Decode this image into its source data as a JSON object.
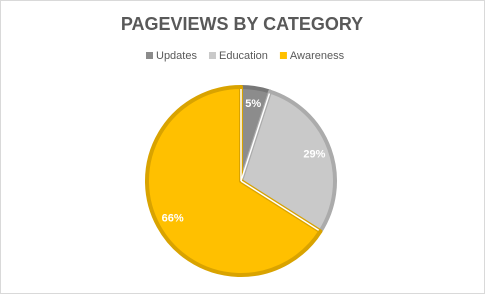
{
  "chart_data": {
    "type": "pie",
    "title": "PAGEVIEWS BY CATEGORY",
    "categories": [
      "Updates",
      "Education",
      "Awareness"
    ],
    "values": [
      5,
      29,
      66
    ],
    "value_labels": [
      "5%",
      "29%",
      "66%"
    ],
    "colors": [
      "#8c8c8c",
      "#c9c9c9",
      "#ffc000"
    ],
    "legend": "top"
  }
}
